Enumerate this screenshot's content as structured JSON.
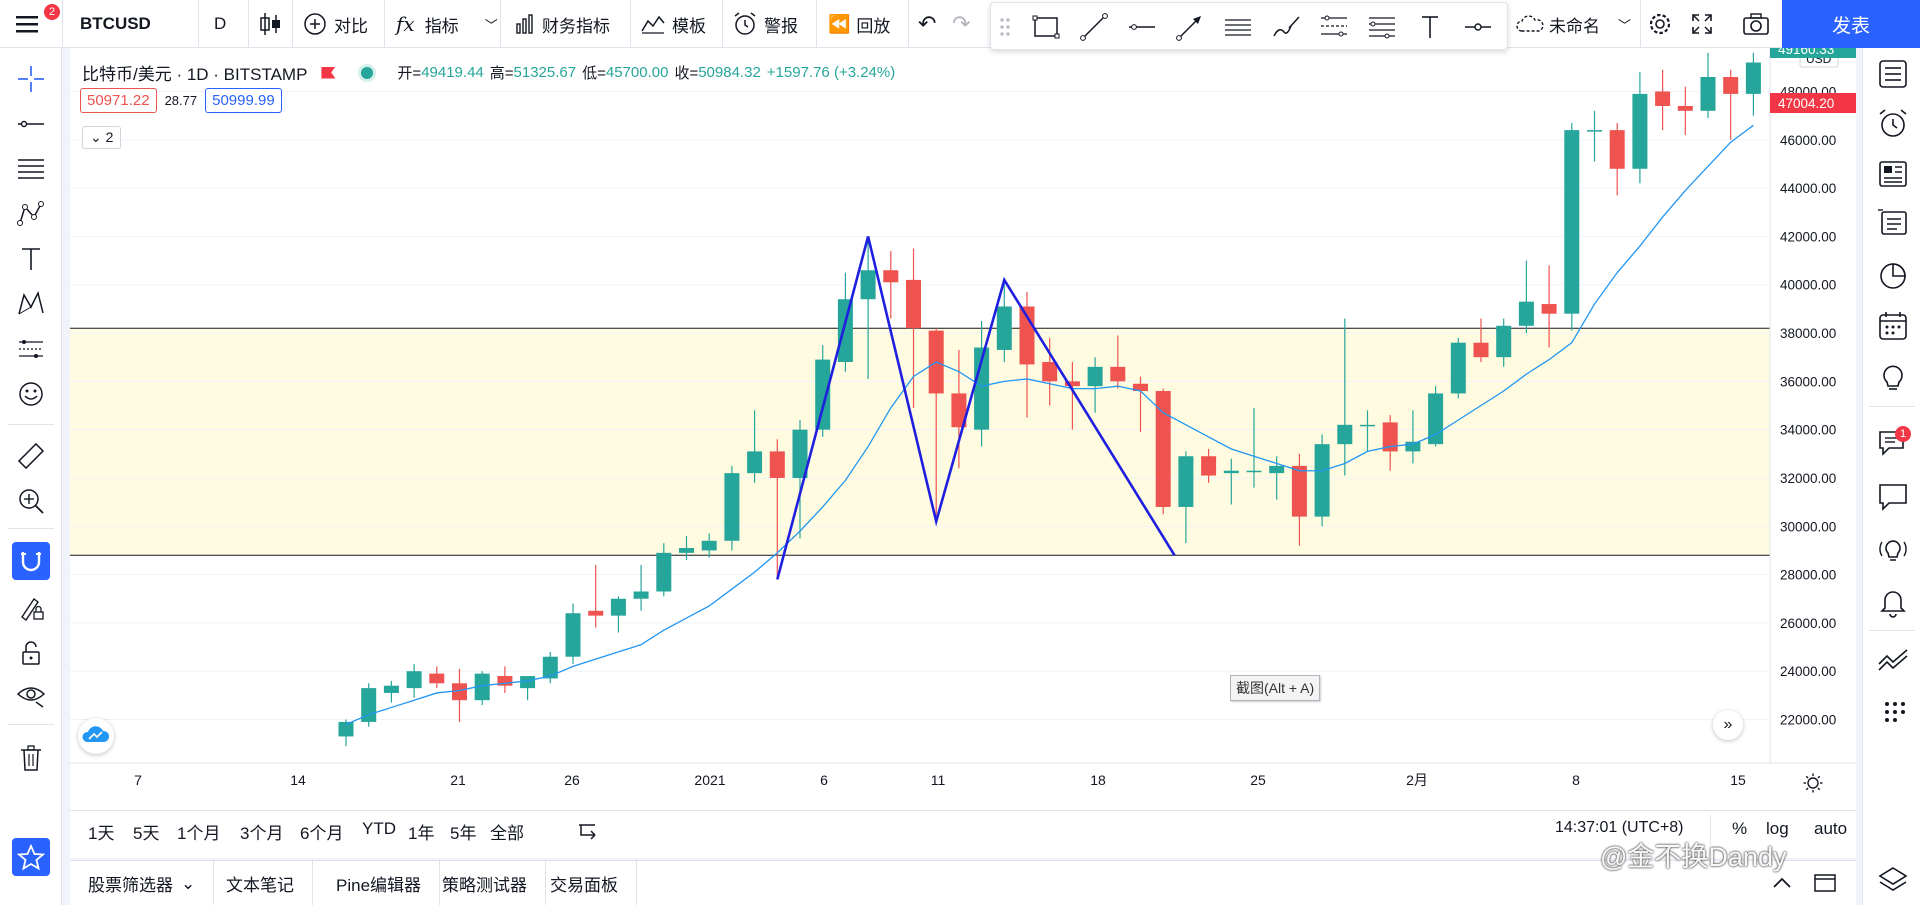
{
  "topbar": {
    "symbol": "BTCUSD",
    "interval": "D",
    "compare": "对比",
    "indicators": "指标",
    "financials": "财务指标",
    "templates": "模板",
    "alert": "警报",
    "replay": "回放",
    "layout_name": "未命名",
    "publish": "发表",
    "menu_badge": "2"
  },
  "legend": {
    "title": "比特币/美元 · 1D · BITSTAMP",
    "open_label": "开=",
    "open": "49419.44",
    "high_label": "高=",
    "high": "51325.67",
    "low_label": "低=",
    "low": "45700.00",
    "close_label": "收=",
    "close": "50984.32",
    "change": "+1597.76 (+3.24%)",
    "bid": "50971.22",
    "spread": "28.77",
    "ask": "50999.99",
    "collapse_count": "2"
  },
  "price_axis": {
    "currency": "USD",
    "top_label": "49160.33",
    "current_label": "47004.20",
    "ticks": [
      "48000.00",
      "46000.00",
      "44000.00",
      "42000.00",
      "40000.00",
      "38000.00",
      "36000.00",
      "34000.00",
      "32000.00",
      "30000.00",
      "28000.00",
      "26000.00",
      "24000.00",
      "22000.00"
    ]
  },
  "time_axis": {
    "ticks": [
      "7",
      "14",
      "21",
      "26",
      "2021",
      "6",
      "11",
      "18",
      "25",
      "2月",
      "8",
      "15"
    ]
  },
  "colors": {
    "up": "#26a69a",
    "down": "#ef5350",
    "ma": "#2196f3",
    "zigzag": "#1f1fe0",
    "zone": "#fffbe0",
    "accent": "#2962ff"
  },
  "chart_data": {
    "type": "candlestick",
    "symbol": "BTCUSD",
    "interval": "1D",
    "ylim": [
      21000,
      49500
    ],
    "zone": [
      28800,
      38200
    ],
    "candles": [
      {
        "o": 21300,
        "h": 22000,
        "l": 20900,
        "c": 21900
      },
      {
        "o": 21900,
        "h": 23500,
        "l": 21700,
        "c": 23300
      },
      {
        "o": 23100,
        "h": 23600,
        "l": 22700,
        "c": 23400
      },
      {
        "o": 23300,
        "h": 24300,
        "l": 22900,
        "c": 24000
      },
      {
        "o": 23900,
        "h": 24200,
        "l": 23300,
        "c": 23500
      },
      {
        "o": 23500,
        "h": 24100,
        "l": 21900,
        "c": 22800
      },
      {
        "o": 22800,
        "h": 24000,
        "l": 22600,
        "c": 23900
      },
      {
        "o": 23800,
        "h": 24200,
        "l": 23100,
        "c": 23400
      },
      {
        "o": 23300,
        "h": 23800,
        "l": 22800,
        "c": 23800
      },
      {
        "o": 23700,
        "h": 24800,
        "l": 23500,
        "c": 24600
      },
      {
        "o": 24600,
        "h": 26800,
        "l": 24300,
        "c": 26400
      },
      {
        "o": 26500,
        "h": 28400,
        "l": 25800,
        "c": 26300
      },
      {
        "o": 26300,
        "h": 27100,
        "l": 25600,
        "c": 27000
      },
      {
        "o": 27000,
        "h": 28400,
        "l": 26500,
        "c": 27300
      },
      {
        "o": 27300,
        "h": 29300,
        "l": 27100,
        "c": 28900
      },
      {
        "o": 28900,
        "h": 29600,
        "l": 28600,
        "c": 29100
      },
      {
        "o": 29000,
        "h": 29700,
        "l": 28700,
        "c": 29400
      },
      {
        "o": 29400,
        "h": 32500,
        "l": 29000,
        "c": 32200
      },
      {
        "o": 32200,
        "h": 34800,
        "l": 31800,
        "c": 33100
      },
      {
        "o": 33100,
        "h": 33600,
        "l": 27800,
        "c": 32000
      },
      {
        "o": 32000,
        "h": 34400,
        "l": 29500,
        "c": 34000
      },
      {
        "o": 34000,
        "h": 37500,
        "l": 33700,
        "c": 36900
      },
      {
        "o": 36800,
        "h": 40500,
        "l": 36400,
        "c": 39400
      },
      {
        "o": 39400,
        "h": 41900,
        "l": 36100,
        "c": 40600
      },
      {
        "o": 40600,
        "h": 41400,
        "l": 38600,
        "c": 40100
      },
      {
        "o": 40200,
        "h": 41500,
        "l": 34900,
        "c": 38200
      },
      {
        "o": 38100,
        "h": 38200,
        "l": 30300,
        "c": 35500
      },
      {
        "o": 35500,
        "h": 37300,
        "l": 32400,
        "c": 34100
      },
      {
        "o": 34000,
        "h": 38500,
        "l": 33300,
        "c": 37400
      },
      {
        "o": 37300,
        "h": 40100,
        "l": 36800,
        "c": 39100
      },
      {
        "o": 39100,
        "h": 39700,
        "l": 34500,
        "c": 36700
      },
      {
        "o": 36800,
        "h": 37800,
        "l": 35000,
        "c": 36000
      },
      {
        "o": 36000,
        "h": 36800,
        "l": 34000,
        "c": 35800
      },
      {
        "o": 35800,
        "h": 37000,
        "l": 34700,
        "c": 36600
      },
      {
        "o": 36600,
        "h": 37900,
        "l": 35700,
        "c": 36000
      },
      {
        "o": 35900,
        "h": 36200,
        "l": 33900,
        "c": 35600
      },
      {
        "o": 35600,
        "h": 35700,
        "l": 30500,
        "c": 30800
      },
      {
        "o": 30800,
        "h": 33100,
        "l": 29300,
        "c": 32900
      },
      {
        "o": 32900,
        "h": 33200,
        "l": 31800,
        "c": 32100
      },
      {
        "o": 32200,
        "h": 32800,
        "l": 30900,
        "c": 32300
      },
      {
        "o": 32300,
        "h": 34900,
        "l": 31600,
        "c": 32300
      },
      {
        "o": 32200,
        "h": 32900,
        "l": 31100,
        "c": 32500
      },
      {
        "o": 32500,
        "h": 33000,
        "l": 29200,
        "c": 30400
      },
      {
        "o": 30400,
        "h": 33800,
        "l": 30000,
        "c": 33400
      },
      {
        "o": 33400,
        "h": 38600,
        "l": 32100,
        "c": 34200
      },
      {
        "o": 34200,
        "h": 34800,
        "l": 33100,
        "c": 34200
      },
      {
        "o": 34300,
        "h": 34600,
        "l": 32300,
        "c": 33100
      },
      {
        "o": 33100,
        "h": 34800,
        "l": 32600,
        "c": 33500
      },
      {
        "o": 33400,
        "h": 35800,
        "l": 33300,
        "c": 35500
      },
      {
        "o": 35500,
        "h": 37800,
        "l": 35300,
        "c": 37600
      },
      {
        "o": 37600,
        "h": 38600,
        "l": 36800,
        "c": 37000
      },
      {
        "o": 37000,
        "h": 38600,
        "l": 36600,
        "c": 38300
      },
      {
        "o": 38300,
        "h": 41000,
        "l": 38000,
        "c": 39300
      },
      {
        "o": 39200,
        "h": 40800,
        "l": 37400,
        "c": 38800
      },
      {
        "o": 38800,
        "h": 46700,
        "l": 38100,
        "c": 46400
      },
      {
        "o": 46400,
        "h": 47200,
        "l": 45100,
        "c": 46400
      },
      {
        "o": 46400,
        "h": 46700,
        "l": 43700,
        "c": 44800
      },
      {
        "o": 44800,
        "h": 48800,
        "l": 44200,
        "c": 47900
      },
      {
        "o": 48000,
        "h": 48900,
        "l": 46400,
        "c": 47400
      },
      {
        "o": 47400,
        "h": 48200,
        "l": 46200,
        "c": 47200
      },
      {
        "o": 47200,
        "h": 49600,
        "l": 46900,
        "c": 48600
      },
      {
        "o": 48600,
        "h": 48900,
        "l": 46000,
        "c": 47900
      },
      {
        "o": 47900,
        "h": 49600,
        "l": 47000,
        "c": 49200
      }
    ],
    "ma": [
      21800,
      22200,
      22500,
      22800,
      23100,
      23200,
      23400,
      23500,
      23600,
      23800,
      24200,
      24500,
      24800,
      25100,
      25700,
      26200,
      26700,
      27400,
      28100,
      28900,
      29800,
      30800,
      31900,
      33300,
      34900,
      36200,
      36800,
      36400,
      35800,
      36000,
      36100,
      35900,
      35700,
      35700,
      35800,
      35600,
      34700,
      34200,
      33700,
      33200,
      32900,
      32600,
      32300,
      32300,
      32600,
      33100,
      33300,
      33400,
      33800,
      34400,
      35000,
      35600,
      36300,
      36900,
      37600,
      39200,
      40500,
      41600,
      42800,
      43900,
      44900,
      45900,
      46600
    ]
  },
  "zigzag_points": [
    {
      "date_idx": 19,
      "price": 27800
    },
    {
      "date_idx": 23,
      "price": 42000
    },
    {
      "date_idx": 26,
      "price": 30200
    },
    {
      "date_idx": 29,
      "price": 40200
    },
    {
      "date_idx": 36.5,
      "price": 28800
    }
  ],
  "tooltip": "截图(Alt + A)",
  "range_buttons": [
    "1天",
    "5天",
    "1个月",
    "3个月",
    "6个月",
    "YTD",
    "1年",
    "5年",
    "全部"
  ],
  "status": {
    "time": "14:37:01 (UTC+8)",
    "percent": "%",
    "log": "log",
    "auto": "auto"
  },
  "bottom_tabs": [
    "股票筛选器",
    "文本笔记",
    "Pine编辑器",
    "策略测试器",
    "交易面板"
  ],
  "watermark": "@金不换Dandy",
  "alerts_badge": "1"
}
